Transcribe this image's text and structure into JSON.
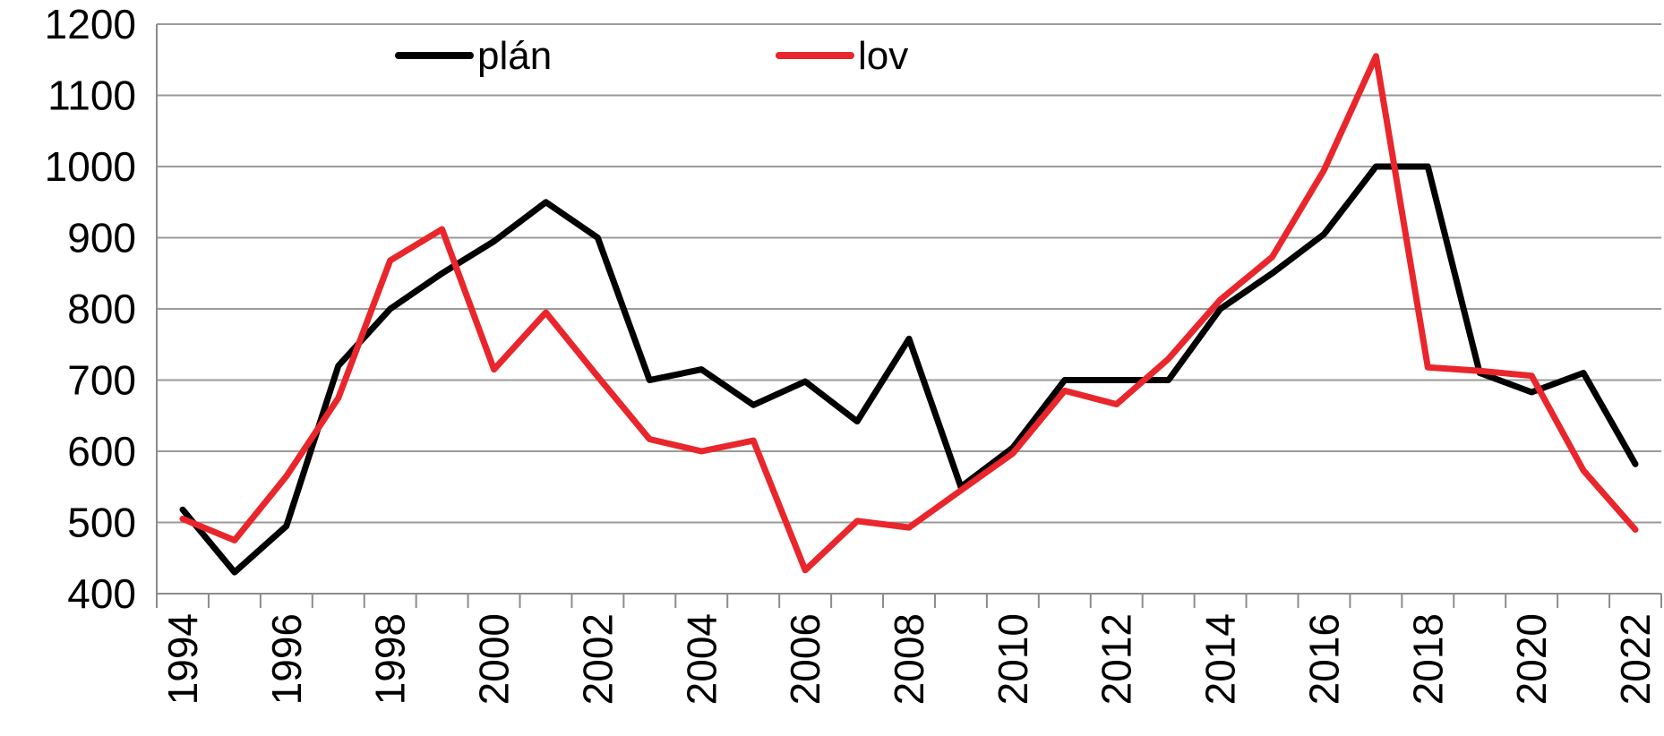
{
  "chart_data": {
    "type": "line",
    "title": "",
    "xlabel": "",
    "ylabel": "",
    "x": [
      1994,
      1995,
      1996,
      1997,
      1998,
      1999,
      2000,
      2001,
      2002,
      2003,
      2004,
      2005,
      2006,
      2007,
      2008,
      2009,
      2010,
      2011,
      2012,
      2013,
      2014,
      2015,
      2016,
      2017,
      2018,
      2019,
      2020,
      2021,
      2022
    ],
    "xticks": [
      "1994",
      "1996",
      "1998",
      "2000",
      "2002",
      "2004",
      "2006",
      "2008",
      "2010",
      "2012",
      "2014",
      "2016",
      "2018",
      "2020",
      "2022"
    ],
    "yticks": [
      "400",
      "500",
      "600",
      "700",
      "800",
      "900",
      "1000",
      "1100",
      "1200"
    ],
    "ylim": [
      400,
      1200
    ],
    "grid": true,
    "legend_position": "top",
    "series": [
      {
        "name": "plán",
        "color": "#000000",
        "values": [
          518,
          430,
          495,
          720,
          800,
          850,
          895,
          950,
          900,
          700,
          715,
          665,
          698,
          642,
          758,
          550,
          605,
          700,
          700,
          700,
          800,
          850,
          905,
          1000,
          1000,
          710,
          683,
          710,
          582
        ]
      },
      {
        "name": "lov",
        "color": "#e8262b",
        "values": [
          505,
          475,
          565,
          675,
          868,
          912,
          715,
          795,
          705,
          617,
          600,
          615,
          433,
          502,
          493,
          545,
          597,
          685,
          666,
          730,
          813,
          873,
          995,
          1155,
          718,
          713,
          706,
          573,
          490
        ]
      }
    ]
  }
}
